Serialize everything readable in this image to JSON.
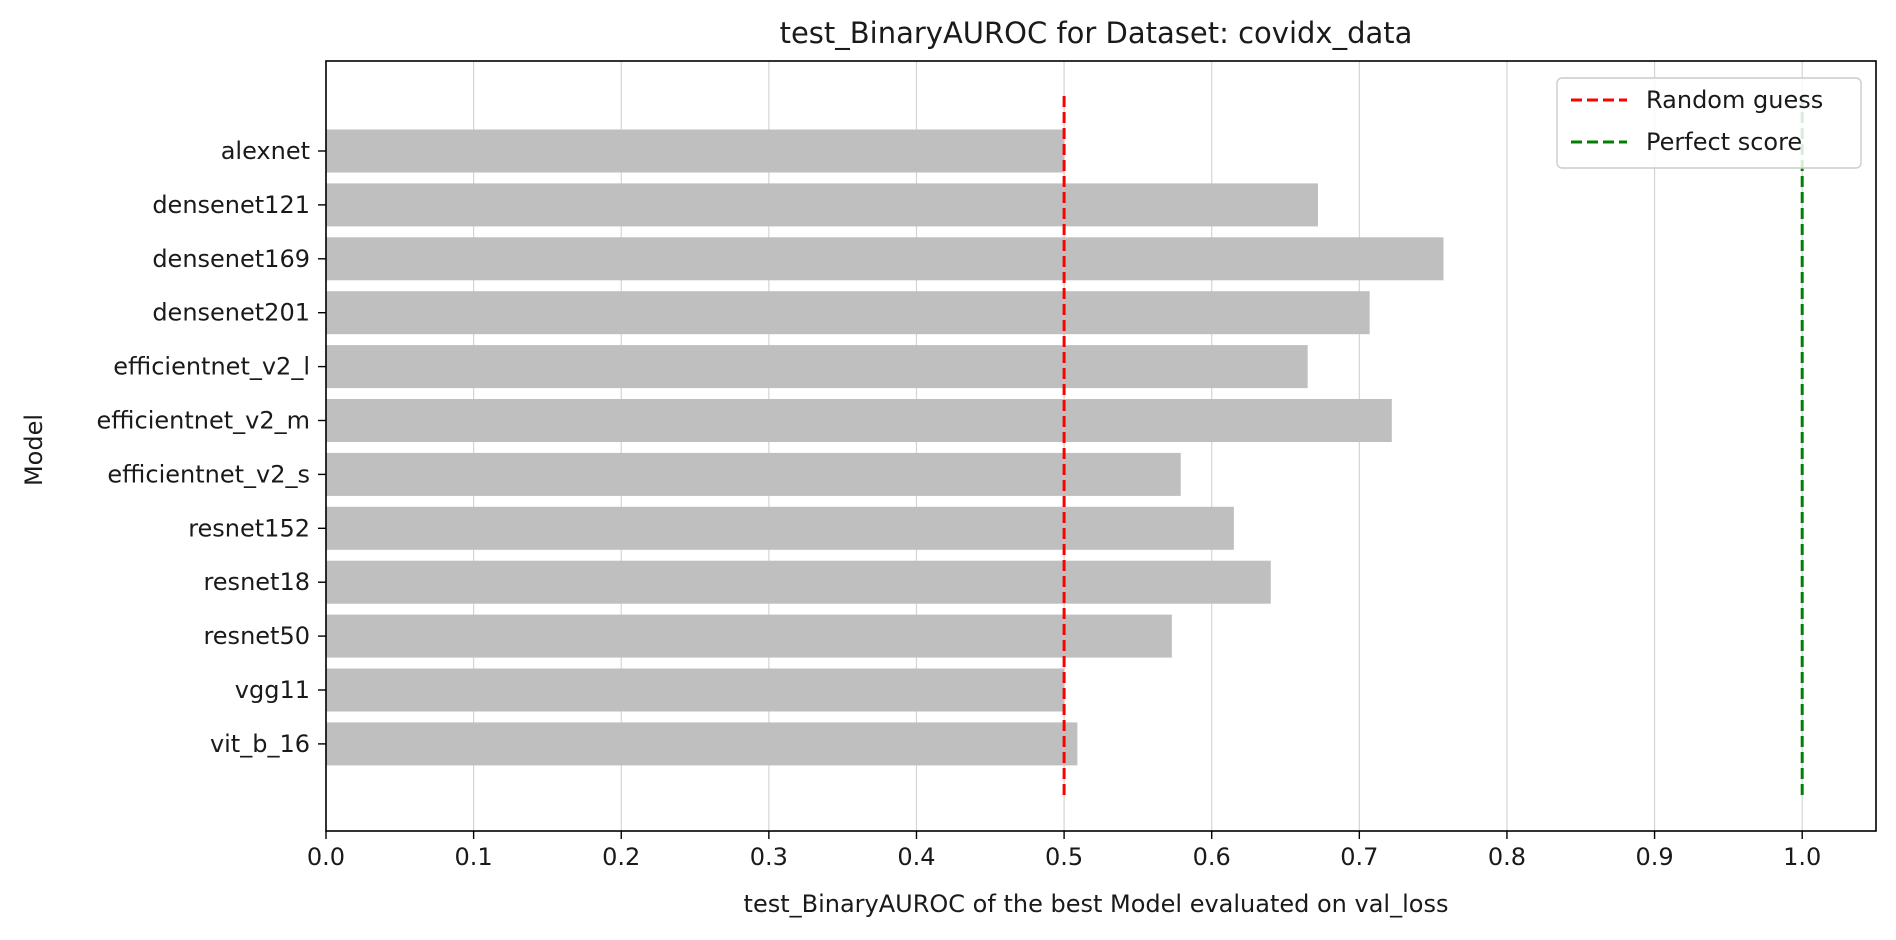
{
  "chart_data": {
    "type": "bar",
    "orientation": "horizontal",
    "title": "test_BinaryAUROC for Dataset: covidx_data",
    "xlabel": "test_BinaryAUROC of the best Model evaluated on val_loss",
    "ylabel": "Model",
    "xlim": [
      0.0,
      1.05
    ],
    "xticks": [
      "0.0",
      "0.1",
      "0.2",
      "0.3",
      "0.4",
      "0.5",
      "0.6",
      "0.7",
      "0.8",
      "0.9",
      "1.0"
    ],
    "grid": "vertical",
    "bar_color": "#bfbfbf",
    "categories": [
      "alexnet",
      "densenet121",
      "densenet169",
      "densenet201",
      "efficientnet_v2_l",
      "efficientnet_v2_m",
      "efficientnet_v2_s",
      "resnet152",
      "resnet18",
      "resnet50",
      "vgg11",
      "vit_b_16"
    ],
    "values": [
      0.5,
      0.672,
      0.757,
      0.707,
      0.665,
      0.722,
      0.579,
      0.615,
      0.64,
      0.573,
      0.5,
      0.509
    ],
    "reference_lines": [
      {
        "name": "Random guess",
        "x": 0.5,
        "color": "#ff0000",
        "style": "dashed"
      },
      {
        "name": "Perfect score",
        "x": 1.0,
        "color": "#008000",
        "style": "dashed"
      }
    ],
    "legend_position": "top-right"
  }
}
